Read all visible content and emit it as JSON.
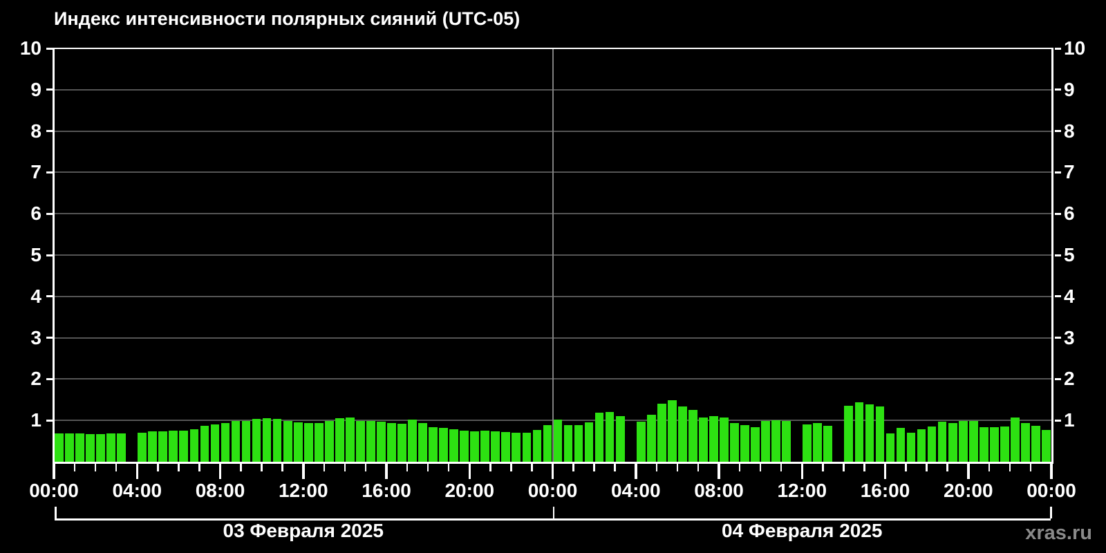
{
  "title": "Индекс интенсивности полярных сияний (UTC-05)",
  "watermark": "xras.ru",
  "colors": {
    "background": "#000000",
    "bar": "#2de112",
    "axis": "#ffffff",
    "grid": "#555555",
    "day_separator": "#808080",
    "text": "#ffffff",
    "watermark": "#8a8a8a"
  },
  "chart_data": {
    "type": "bar",
    "title": "Индекс интенсивности полярных сияний (UTC-05)",
    "xlabel": "",
    "ylabel": "",
    "ylim": [
      0,
      10
    ],
    "grid": true,
    "slot_minutes": 30,
    "y_ticks": [
      1,
      2,
      3,
      4,
      5,
      6,
      7,
      8,
      9,
      10
    ],
    "x_labels": [
      "00:00",
      "04:00",
      "08:00",
      "12:00",
      "16:00",
      "20:00",
      "00:00",
      "04:00",
      "08:00",
      "12:00",
      "16:00",
      "20:00",
      "00:00"
    ],
    "days": [
      {
        "label": "03 Февраля 2025",
        "values": [
          0.69,
          0.69,
          0.69,
          0.67,
          0.67,
          0.68,
          0.69,
          null,
          0.7,
          0.73,
          0.73,
          0.75,
          0.76,
          0.79,
          0.87,
          0.91,
          0.93,
          0.98,
          0.98,
          1.03,
          1.05,
          1.03,
          0.98,
          0.96,
          0.93,
          0.94,
          0.98,
          1.06,
          1.07,
          0.98,
          0.98,
          0.97,
          0.93,
          0.92,
          1.02,
          0.93,
          0.84,
          0.82,
          0.79,
          0.75,
          0.73,
          0.75,
          0.74,
          0.72,
          0.71,
          0.71,
          0.77,
          0.89
        ]
      },
      {
        "label": "04 Февраля 2025",
        "values": [
          1.02,
          0.88,
          0.89,
          0.96,
          1.19,
          1.2,
          1.1,
          null,
          0.97,
          1.13,
          1.4,
          1.49,
          1.33,
          1.25,
          1.07,
          1.1,
          1.07,
          0.93,
          0.89,
          0.84,
          0.98,
          1.0,
          0.98,
          null,
          0.9,
          0.94,
          0.87,
          null,
          1.35,
          1.44,
          1.39,
          1.33,
          0.69,
          0.82,
          0.7,
          0.78,
          0.85,
          0.97,
          0.93,
          0.98,
          0.98,
          0.84,
          0.84,
          0.85,
          1.07,
          0.93,
          0.87,
          0.77
        ]
      }
    ]
  }
}
